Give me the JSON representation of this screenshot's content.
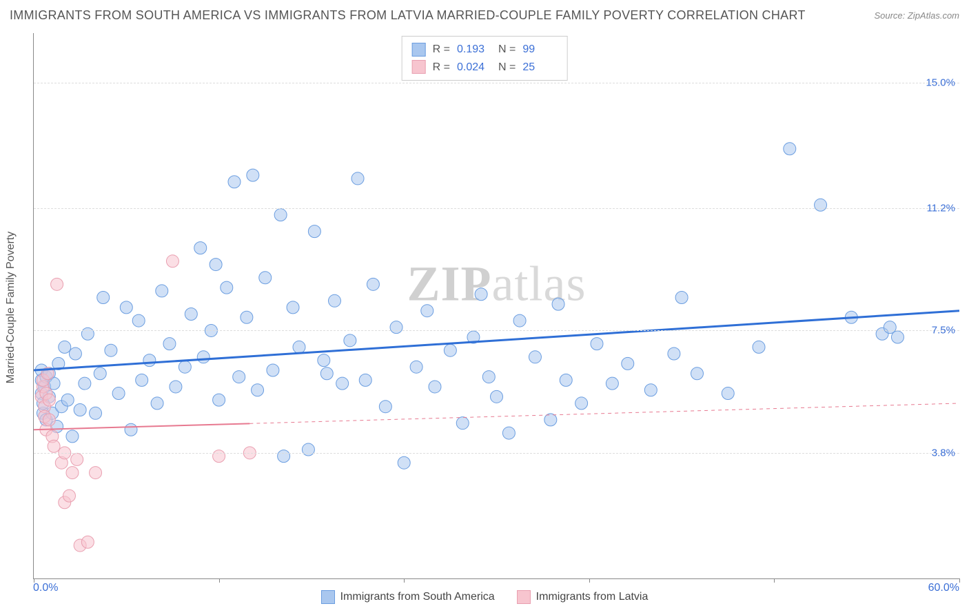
{
  "header": {
    "title": "IMMIGRANTS FROM SOUTH AMERICA VS IMMIGRANTS FROM LATVIA MARRIED-COUPLE FAMILY POVERTY CORRELATION CHART",
    "source": "Source: ZipAtlas.com"
  },
  "ylabel": "Married-Couple Family Poverty",
  "watermark": {
    "bold": "ZIP",
    "light": "atlas"
  },
  "chart": {
    "type": "scatter",
    "background_color": "#ffffff",
    "grid_color": "#dddddd",
    "axis_color": "#888888",
    "xlim": [
      0,
      60
    ],
    "ylim": [
      0,
      16.5
    ],
    "xlim_labels": {
      "min": "0.0%",
      "max": "60.0%",
      "color": "#3b6fd6"
    },
    "ytick_positions": [
      3.8,
      7.5,
      11.2,
      15.0
    ],
    "ytick_labels": [
      "3.8%",
      "7.5%",
      "11.2%",
      "15.0%"
    ],
    "ytick_color": "#3b6fd6",
    "xtick_positions": [
      0,
      12,
      24,
      36,
      48,
      60
    ],
    "marker_radius": 9,
    "marker_opacity": 0.55,
    "series": [
      {
        "id": "south_america",
        "label": "Immigrants from South America",
        "color_fill": "#a9c7ef",
        "color_stroke": "#6a9de0",
        "R": "0.193",
        "N": "99",
        "regression": {
          "x1": 0,
          "y1": 6.3,
          "x2": 60,
          "y2": 8.1,
          "stroke": "#2f6fd6",
          "width": 3,
          "dash": ""
        },
        "points": [
          [
            0.5,
            5.6
          ],
          [
            0.5,
            6.0
          ],
          [
            0.5,
            6.3
          ],
          [
            0.6,
            5.0
          ],
          [
            0.6,
            5.3
          ],
          [
            0.7,
            5.8
          ],
          [
            0.8,
            4.8
          ],
          [
            0.8,
            6.1
          ],
          [
            1.0,
            5.5
          ],
          [
            1.0,
            6.2
          ],
          [
            1.2,
            5.0
          ],
          [
            1.3,
            5.9
          ],
          [
            1.5,
            4.6
          ],
          [
            1.6,
            6.5
          ],
          [
            1.8,
            5.2
          ],
          [
            2.0,
            7.0
          ],
          [
            2.2,
            5.4
          ],
          [
            2.5,
            4.3
          ],
          [
            2.7,
            6.8
          ],
          [
            3.0,
            5.1
          ],
          [
            3.3,
            5.9
          ],
          [
            3.5,
            7.4
          ],
          [
            4.0,
            5.0
          ],
          [
            4.3,
            6.2
          ],
          [
            4.5,
            8.5
          ],
          [
            5.0,
            6.9
          ],
          [
            5.5,
            5.6
          ],
          [
            6.0,
            8.2
          ],
          [
            6.3,
            4.5
          ],
          [
            6.8,
            7.8
          ],
          [
            7.0,
            6.0
          ],
          [
            7.5,
            6.6
          ],
          [
            8.0,
            5.3
          ],
          [
            8.3,
            8.7
          ],
          [
            8.8,
            7.1
          ],
          [
            9.2,
            5.8
          ],
          [
            9.8,
            6.4
          ],
          [
            10.2,
            8.0
          ],
          [
            10.8,
            10.0
          ],
          [
            11.0,
            6.7
          ],
          [
            11.5,
            7.5
          ],
          [
            12.0,
            5.4
          ],
          [
            12.5,
            8.8
          ],
          [
            13.0,
            12.0
          ],
          [
            13.3,
            6.1
          ],
          [
            13.8,
            7.9
          ],
          [
            14.2,
            12.2
          ],
          [
            14.5,
            5.7
          ],
          [
            15.0,
            9.1
          ],
          [
            15.5,
            6.3
          ],
          [
            16.0,
            11.0
          ],
          [
            16.2,
            3.7
          ],
          [
            16.8,
            8.2
          ],
          [
            17.2,
            7.0
          ],
          [
            17.8,
            3.9
          ],
          [
            18.2,
            10.5
          ],
          [
            18.8,
            6.6
          ],
          [
            19.5,
            8.4
          ],
          [
            20.0,
            5.9
          ],
          [
            20.5,
            7.2
          ],
          [
            21.0,
            12.1
          ],
          [
            21.5,
            6.0
          ],
          [
            22.0,
            8.9
          ],
          [
            22.8,
            5.2
          ],
          [
            23.5,
            7.6
          ],
          [
            24.0,
            3.5
          ],
          [
            24.8,
            6.4
          ],
          [
            25.5,
            8.1
          ],
          [
            26.0,
            5.8
          ],
          [
            27.0,
            6.9
          ],
          [
            27.8,
            4.7
          ],
          [
            28.5,
            7.3
          ],
          [
            29.5,
            6.1
          ],
          [
            30.0,
            5.5
          ],
          [
            30.8,
            4.4
          ],
          [
            31.5,
            7.8
          ],
          [
            32.5,
            6.7
          ],
          [
            33.5,
            4.8
          ],
          [
            34.5,
            6.0
          ],
          [
            35.5,
            5.3
          ],
          [
            36.5,
            7.1
          ],
          [
            37.5,
            5.9
          ],
          [
            38.5,
            6.5
          ],
          [
            40.0,
            5.7
          ],
          [
            41.5,
            6.8
          ],
          [
            43.0,
            6.2
          ],
          [
            45.0,
            5.6
          ],
          [
            47.0,
            7.0
          ],
          [
            49.0,
            13.0
          ],
          [
            51.0,
            11.3
          ],
          [
            53.0,
            7.9
          ],
          [
            55.0,
            7.4
          ],
          [
            55.5,
            7.6
          ],
          [
            56.0,
            7.3
          ],
          [
            42.0,
            8.5
          ],
          [
            34.0,
            8.3
          ],
          [
            29.0,
            8.6
          ],
          [
            19.0,
            6.2
          ],
          [
            11.8,
            9.5
          ]
        ]
      },
      {
        "id": "latvia",
        "label": "Immigrants from Latvia",
        "color_fill": "#f7c5cf",
        "color_stroke": "#e99fb0",
        "R": "0.024",
        "N": "25",
        "regression": {
          "x1": 0,
          "y1": 4.5,
          "x2": 60,
          "y2": 5.3,
          "stroke": "#e77990",
          "width": 2,
          "dash": "",
          "solid_until_x": 14
        },
        "points": [
          [
            0.5,
            5.5
          ],
          [
            0.6,
            5.8
          ],
          [
            0.6,
            6.0
          ],
          [
            0.7,
            5.2
          ],
          [
            0.7,
            4.9
          ],
          [
            0.8,
            5.6
          ],
          [
            0.8,
            4.5
          ],
          [
            0.9,
            6.2
          ],
          [
            1.0,
            4.8
          ],
          [
            1.0,
            5.4
          ],
          [
            1.2,
            4.3
          ],
          [
            1.3,
            4.0
          ],
          [
            1.5,
            8.9
          ],
          [
            1.8,
            3.5
          ],
          [
            2.0,
            3.8
          ],
          [
            2.0,
            2.3
          ],
          [
            2.3,
            2.5
          ],
          [
            2.5,
            3.2
          ],
          [
            2.8,
            3.6
          ],
          [
            3.0,
            1.0
          ],
          [
            3.5,
            1.1
          ],
          [
            4.0,
            3.2
          ],
          [
            9.0,
            9.6
          ],
          [
            12.0,
            3.7
          ],
          [
            14.0,
            3.8
          ]
        ]
      }
    ]
  },
  "top_legend": {
    "r_label": "R =",
    "n_label": "N =",
    "value_color": "#3b6fd6",
    "label_color": "#555555"
  }
}
